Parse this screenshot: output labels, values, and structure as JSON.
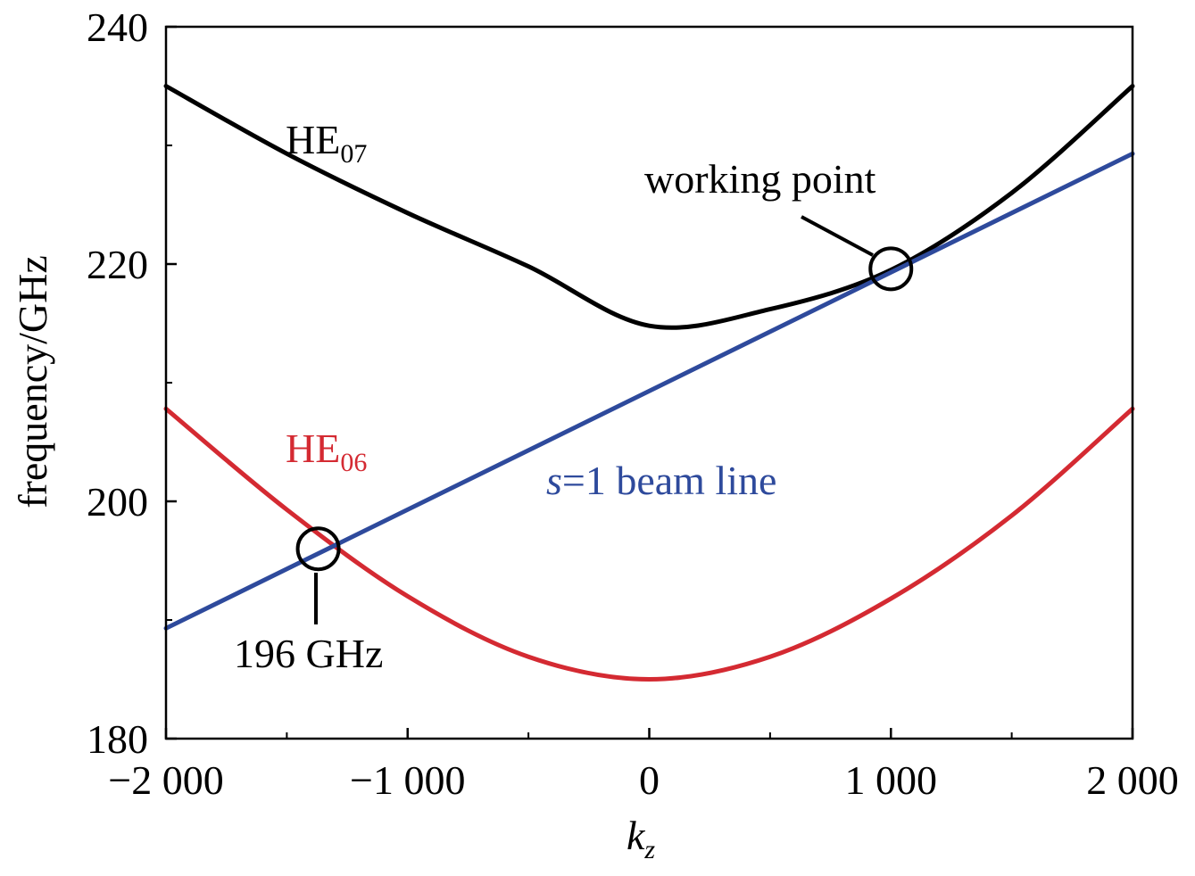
{
  "chart_data": {
    "type": "line",
    "title": "",
    "xlabel": "k",
    "xlabel_sub": "z",
    "ylabel": "frequency/GHz",
    "xlim": [
      -2000,
      2000
    ],
    "ylim": [
      180,
      240
    ],
    "x_ticks": [
      -2000,
      -1000,
      0,
      1000,
      2000
    ],
    "x_tick_labels": [
      "−2 000",
      "−1 000",
      "0",
      "1 000",
      "2 000"
    ],
    "y_ticks": [
      180,
      200,
      220,
      240
    ],
    "y_tick_labels": [
      "180",
      "200",
      "220",
      "240"
    ],
    "grid": false,
    "legend": "none",
    "series": [
      {
        "name": "HE07",
        "color": "#000000",
        "x": [
          -2000,
          -1500,
          -1000,
          -500,
          0,
          500,
          1000,
          1500,
          2000
        ],
        "y": [
          235.0,
          229.3,
          224.3,
          219.8,
          214.8,
          216.2,
          219.5,
          226.0,
          235.0
        ]
      },
      {
        "name": "HE06",
        "color": "#d42a32",
        "x": [
          -2000,
          -1500,
          -1000,
          -500,
          0,
          500,
          1000,
          1500,
          2000
        ],
        "y": [
          207.8,
          199.3,
          192.0,
          186.9,
          185.0,
          186.9,
          191.8,
          198.8,
          207.8
        ]
      },
      {
        "name": "s=1 beam line",
        "color": "#2e4a9c",
        "x": [
          -2000,
          2000
        ],
        "y": [
          189.3,
          229.3
        ]
      }
    ],
    "annotations": {
      "he07": {
        "main": "HE",
        "sub": "07",
        "color": "#000000"
      },
      "he06": {
        "main": "HE",
        "sub": "06",
        "color": "#d42a32"
      },
      "beam": {
        "italic": "s",
        "rest": "=1 beam line",
        "color": "#2e4a9c"
      },
      "working_point": {
        "text": "working point",
        "x": 1000,
        "y": 219.6
      },
      "ghz196": {
        "text": "196 GHz",
        "x": -1370,
        "y": 196.0
      }
    }
  }
}
